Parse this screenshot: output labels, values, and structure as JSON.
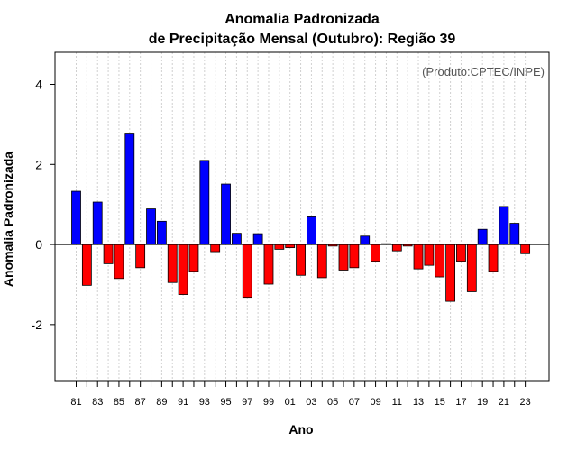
{
  "chart_data": {
    "type": "bar",
    "title_line1": "Anomalia Padronizada",
    "title_line2": "de Precipitação Mensal (Outubro): Região 39",
    "xlabel": "Ano",
    "ylabel": "Anomalia Padronizada",
    "credit": "(Produto:CPTEC/INPE)",
    "ylim": [
      -3.4,
      4.8
    ],
    "yticks": [
      -2,
      0,
      2,
      4
    ],
    "ytick_labels": [
      "-2",
      "0",
      "2",
      "4"
    ],
    "categories": [
      "81",
      "82",
      "83",
      "84",
      "85",
      "86",
      "87",
      "88",
      "89",
      "90",
      "91",
      "92",
      "93",
      "94",
      "95",
      "96",
      "97",
      "98",
      "99",
      "00",
      "01",
      "02",
      "03",
      "04",
      "05",
      "06",
      "07",
      "08",
      "09",
      "10",
      "11",
      "12",
      "13",
      "14",
      "15",
      "16",
      "17",
      "18",
      "19",
      "20",
      "21",
      "22",
      "23"
    ],
    "xtick_labels": [
      "81",
      "83",
      "85",
      "87",
      "89",
      "91",
      "93",
      "95",
      "97",
      "99",
      "01",
      "03",
      "05",
      "07",
      "09",
      "11",
      "13",
      "15",
      "17",
      "19",
      "21",
      "23"
    ],
    "values": [
      1.33,
      -1.02,
      1.06,
      -0.48,
      -0.85,
      2.76,
      -0.58,
      0.89,
      0.58,
      -0.95,
      -1.25,
      -0.67,
      2.1,
      -0.18,
      1.51,
      0.28,
      -1.32,
      0.27,
      -0.99,
      -0.12,
      -0.08,
      -0.77,
      0.69,
      -0.83,
      -0.04,
      -0.64,
      -0.58,
      0.21,
      -0.42,
      0.02,
      -0.16,
      -0.04,
      -0.61,
      -0.52,
      -0.81,
      -1.42,
      -0.42,
      -1.18,
      0.38,
      -0.67,
      0.95,
      0.53,
      -0.23
    ],
    "colors": {
      "positive": "#0000ff",
      "negative": "#ff0000",
      "grid": "#d0d0d0",
      "zero_line": "#000000"
    }
  }
}
